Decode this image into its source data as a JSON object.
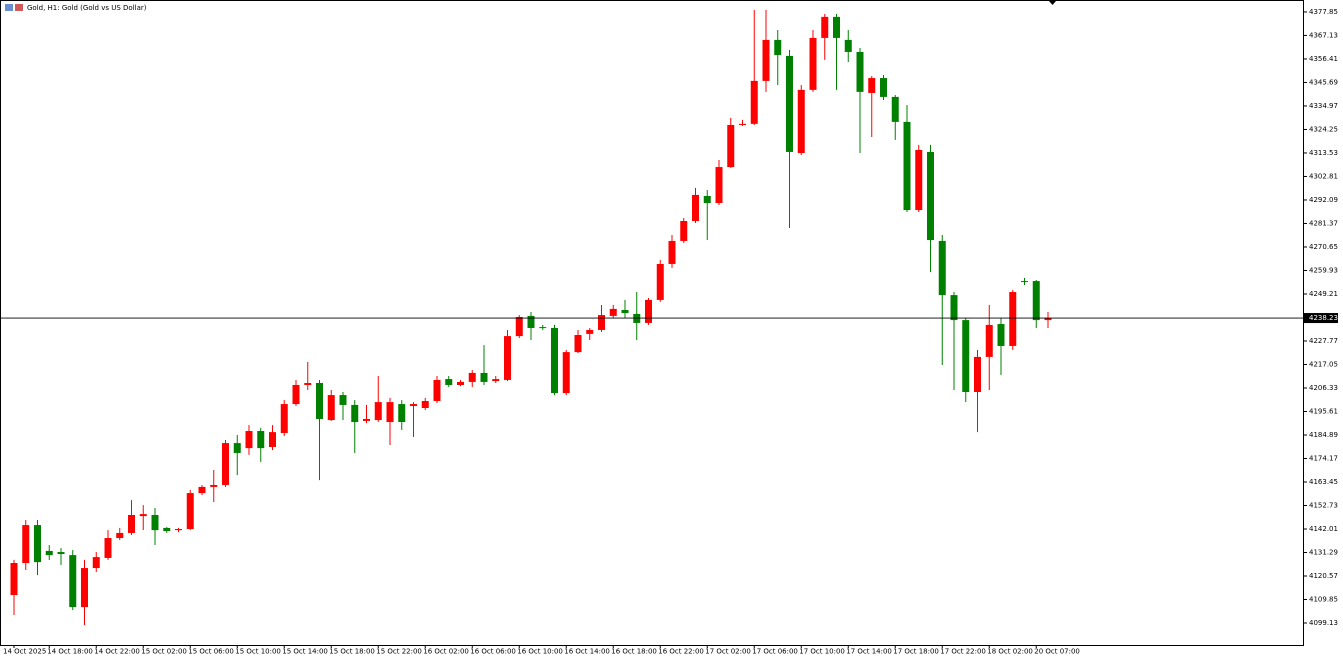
{
  "chart_data": {
    "type": "candlestick",
    "title": "Gold, H1:  Gold (Gold vs US Dollar)",
    "up_color": "#ff0000",
    "down_color": "#008000",
    "last_price": 4238.23,
    "categories": [
      "14 Oct 2025",
      null,
      null,
      "14 Oct 18:00",
      null,
      null,
      null,
      "14 Oct 22:00",
      null,
      null,
      null,
      "15 Oct 02:00",
      null,
      null,
      null,
      "15 Oct 06:00",
      null,
      null,
      null,
      "15 Oct 10:00",
      null,
      null,
      null,
      "15 Oct 14:00",
      null,
      null,
      null,
      "15 Oct 18:00",
      null,
      null,
      null,
      "15 Oct 22:00",
      null,
      null,
      null,
      "16 Oct 02:00",
      null,
      null,
      null,
      "16 Oct 06:00",
      null,
      null,
      null,
      "16 Oct 10:00",
      null,
      null,
      null,
      "16 Oct 14:00",
      null,
      null,
      null,
      "16 Oct 18:00",
      null,
      null,
      null,
      "16 Oct 22:00",
      null,
      null,
      null,
      "17 Oct 02:00",
      null,
      null,
      null,
      "17 Oct 06:00",
      null,
      null,
      null,
      "17 Oct 10:00",
      null,
      null,
      null,
      "17 Oct 14:00",
      null,
      null,
      null,
      "17 Oct 18:00",
      null,
      null,
      null,
      "17 Oct 22:00",
      null,
      null,
      null,
      "18 Oct 02:00",
      null,
      null,
      null,
      "20 Oct 07:00",
      null
    ],
    "open": [
      4111.9,
      4126.5,
      4143.8,
      4132.0,
      4131.5,
      4130.1,
      4106.4,
      4124.2,
      4128.8,
      4137.9,
      4140.2,
      4147.9,
      4148.4,
      4142.5,
      4141.5,
      4142.0,
      4158.4,
      4161.2,
      4162.1,
      4181.2,
      4178.9,
      4186.7,
      4179.4,
      4185.8,
      4199.0,
      4207.7,
      4208.6,
      4191.7,
      4203.1,
      4198.6,
      4191.3,
      4191.7,
      4190.8,
      4199.0,
      4198.1,
      4197.2,
      4200.4,
      4210.4,
      4207.7,
      4209.1,
      4213.2,
      4209.5,
      4210.0,
      4230.0,
      4239.2,
      4234.1,
      4233.7,
      4204.0,
      4222.7,
      4231.0,
      4232.8,
      4239.2,
      4241.9,
      4240.1,
      4236.0,
      4246.5,
      4262.9,
      4273.4,
      4282.5,
      4293.9,
      4290.7,
      4307.1,
      4326.3,
      4326.8,
      4346.4,
      4365.1,
      4357.8,
      4313.5,
      4342.3,
      4366.0,
      4375.6,
      4365.1,
      4359.6,
      4340.9,
      4347.7,
      4339.1,
      4327.7,
      4287.5,
      4314.0,
      4273.4,
      4248.7,
      4237.3,
      4204.5,
      4220.5,
      4235.5,
      4225.5,
      4255.1,
      4255.1,
      4237.3
    ],
    "high": [
      4127.9,
      4146.1,
      4146.1,
      4134.7,
      4133.3,
      4132.4,
      4127.9,
      4131.5,
      4141.5,
      4142.5,
      4155.2,
      4152.9,
      4151.6,
      4142.9,
      4142.5,
      4159.8,
      4162.1,
      4168.9,
      4182.6,
      4184.9,
      4189.4,
      4188.1,
      4189.4,
      4200.8,
      4210.0,
      4218.2,
      4210.0,
      4205.4,
      4204.5,
      4200.8,
      4198.6,
      4211.8,
      4201.8,
      4200.8,
      4199.9,
      4201.8,
      4211.8,
      4211.8,
      4210.0,
      4214.5,
      4225.9,
      4211.8,
      4232.8,
      4239.6,
      4241.0,
      4235.1,
      4235.1,
      4223.7,
      4232.8,
      4233.7,
      4244.2,
      4244.2,
      4246.5,
      4250.1,
      4247.4,
      4264.7,
      4276.1,
      4283.9,
      4297.6,
      4296.6,
      4310.3,
      4329.5,
      4328.6,
      4378.8,
      4378.8,
      4369.6,
      4360.5,
      4344.5,
      4369.6,
      4376.9,
      4376.9,
      4369.6,
      4361.4,
      4348.6,
      4349.1,
      4340.0,
      4335.4,
      4317.2,
      4317.2,
      4276.1,
      4250.1,
      4238.2,
      4223.7,
      4244.2,
      4238.2,
      4251.0,
      4256.5,
      4255.6,
      4241.0
    ],
    "low": [
      4102.8,
      4123.3,
      4121.0,
      4127.9,
      4125.6,
      4105.0,
      4098.2,
      4122.4,
      4127.9,
      4137.0,
      4139.3,
      4141.5,
      4134.7,
      4140.2,
      4140.6,
      4141.5,
      4157.5,
      4154.3,
      4161.2,
      4166.6,
      4175.8,
      4172.6,
      4178.0,
      4184.4,
      4198.1,
      4205.4,
      4164.3,
      4191.3,
      4191.7,
      4176.7,
      4190.3,
      4190.8,
      4180.3,
      4187.2,
      4184.0,
      4196.3,
      4199.5,
      4206.8,
      4207.2,
      4206.8,
      4207.7,
      4208.6,
      4209.5,
      4229.1,
      4228.2,
      4232.8,
      4203.1,
      4203.1,
      4222.3,
      4228.2,
      4231.9,
      4238.2,
      4238.2,
      4228.2,
      4235.1,
      4245.6,
      4261.1,
      4272.5,
      4281.6,
      4273.8,
      4289.8,
      4306.7,
      4325.8,
      4326.3,
      4341.4,
      4344.5,
      4279.3,
      4312.6,
      4341.4,
      4356.0,
      4342.3,
      4355.0,
      4313.5,
      4320.8,
      4337.7,
      4319.5,
      4286.6,
      4286.6,
      4259.2,
      4216.8,
      4205.4,
      4199.9,
      4186.2,
      4205.4,
      4212.2,
      4223.7,
      4253.3,
      4233.7,
      4233.7
    ],
    "close": [
      4126.5,
      4143.8,
      4126.9,
      4130.1,
      4130.6,
      4106.4,
      4124.2,
      4129.2,
      4137.9,
      4140.2,
      4148.4,
      4148.8,
      4141.5,
      4141.1,
      4142.0,
      4158.4,
      4161.2,
      4162.1,
      4181.2,
      4176.7,
      4186.7,
      4178.9,
      4186.2,
      4199.0,
      4207.7,
      4208.6,
      4192.2,
      4203.1,
      4198.6,
      4190.8,
      4192.2,
      4199.9,
      4199.9,
      4190.8,
      4199.0,
      4200.4,
      4210.0,
      4207.7,
      4209.1,
      4213.2,
      4209.1,
      4210.4,
      4230.0,
      4238.7,
      4233.7,
      4233.7,
      4204.0,
      4222.7,
      4230.5,
      4232.8,
      4239.6,
      4242.4,
      4240.5,
      4236.0,
      4246.5,
      4262.9,
      4273.4,
      4282.5,
      4294.4,
      4290.7,
      4307.1,
      4326.3,
      4326.8,
      4346.4,
      4365.1,
      4358.2,
      4314.0,
      4342.3,
      4366.0,
      4375.6,
      4366.0,
      4359.6,
      4341.4,
      4347.7,
      4339.1,
      4327.7,
      4287.5,
      4314.9,
      4273.8,
      4248.7,
      4237.3,
      4204.5,
      4220.5,
      4235.1,
      4225.5,
      4250.1,
      4254.7,
      4237.3,
      4238.2
    ],
    "ylim": [
      4089.1,
      4383.3
    ],
    "yticks": [
      4099.13,
      4109.85,
      4120.57,
      4131.29,
      4142.01,
      4152.73,
      4163.45,
      4174.17,
      4184.89,
      4195.61,
      4206.33,
      4217.05,
      4227.77,
      4249.21,
      4259.93,
      4270.65,
      4281.37,
      4292.09,
      4302.81,
      4313.53,
      4324.25,
      4334.97,
      4345.69,
      4356.41,
      4367.13,
      4377.85
    ]
  }
}
